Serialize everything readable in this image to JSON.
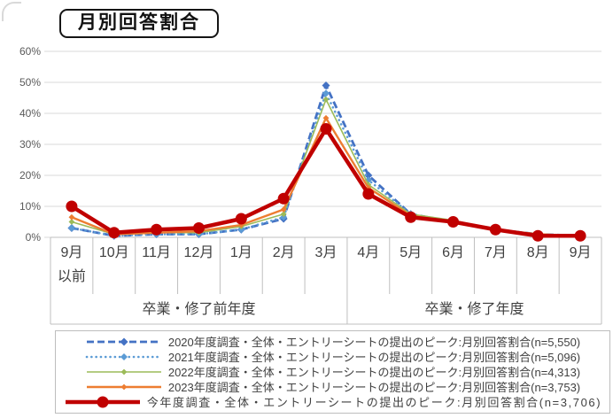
{
  "title": "月別回答割合",
  "chart_data": {
    "type": "line",
    "title": "月別回答割合",
    "categories": [
      "9月\n以前",
      "10月",
      "11月",
      "12月",
      "1月",
      "2月",
      "3月",
      "4月",
      "5月",
      "6月",
      "7月",
      "8月",
      "9月"
    ],
    "category_groups": [
      {
        "label": "卒業・修了前年度",
        "span": 7
      },
      {
        "label": "卒業・修了年度",
        "span": 6
      }
    ],
    "y_ticks": [
      "0%",
      "10%",
      "20%",
      "30%",
      "40%",
      "50%",
      "60%"
    ],
    "ylim": [
      0,
      60
    ],
    "grid": true,
    "legend_position": "bottom",
    "series": [
      {
        "name": "2020年度調査・全体・エントリーシートの提出のピーク:月別回答割合(n=5,550)",
        "color": "#4472C4",
        "line_style": "dashed",
        "marker": "diamond",
        "values": [
          3,
          0.5,
          1,
          1,
          2.5,
          6,
          49,
          20,
          7.5,
          5,
          2.5,
          1,
          0.5
        ]
      },
      {
        "name": "2021年度調査・全体・エントリーシートの提出のピーク:月別回答割合(n=5,096)",
        "color": "#5B9BD5",
        "line_style": "dotted",
        "marker": "diamond",
        "values": [
          3,
          0.5,
          1,
          1,
          2.5,
          6.5,
          46.5,
          18.5,
          7.5,
          5,
          2.5,
          1,
          0.5
        ]
      },
      {
        "name": "2022年度調査・全体・エントリーシートの提出のピーク:月別回答割合(n=4,313)",
        "color": "#9CBB59",
        "line_style": "solid",
        "marker": "diamond",
        "values": [
          5,
          1,
          1.5,
          1.5,
          3.5,
          7.5,
          44.5,
          17,
          7.5,
          5.5,
          2.5,
          1,
          0.5
        ]
      },
      {
        "name": "2023年度調査・全体・エントリーシートの提出のピーク:月別回答割合(n=3,753)",
        "color": "#ED7D31",
        "line_style": "solid",
        "marker": "diamond",
        "values": [
          6.5,
          1,
          1.5,
          2,
          4,
          9,
          38.5,
          16,
          7,
          5,
          2.5,
          1,
          0.5
        ]
      },
      {
        "name": "今年度調査・全体・エントリーシートの提出のピーク:月別回答割合(n=3,706)",
        "color": "#C00000",
        "line_style": "solid",
        "marker": "circle",
        "values": [
          10,
          1.5,
          2.5,
          3,
          6,
          12.5,
          35,
          14,
          6.5,
          5,
          2.5,
          0.5,
          0.5
        ]
      }
    ]
  }
}
